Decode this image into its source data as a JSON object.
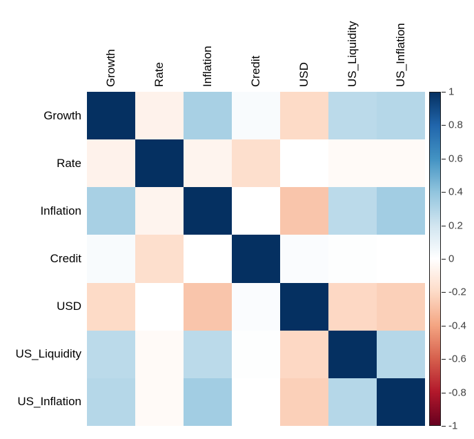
{
  "chart_data": {
    "type": "heatmap",
    "title": "",
    "xlabel": "",
    "ylabel": "",
    "rows": [
      "Growth",
      "Rate",
      "Inflation",
      "Credit",
      "USD",
      "US_Liquidity",
      "US_Inflation"
    ],
    "columns": [
      "Growth",
      "Rate",
      "Inflation",
      "Credit",
      "USD",
      "US_Liquidity",
      "US_Inflation"
    ],
    "matrix": [
      [
        1.0,
        -0.07,
        0.33,
        0.03,
        -0.2,
        0.27,
        0.29
      ],
      [
        -0.07,
        1.0,
        -0.06,
        -0.18,
        0.0,
        -0.03,
        -0.03
      ],
      [
        0.33,
        -0.06,
        1.0,
        0.0,
        -0.28,
        0.27,
        0.35
      ],
      [
        0.03,
        -0.18,
        0.0,
        1.0,
        0.02,
        0.01,
        0.0
      ],
      [
        -0.2,
        0.0,
        -0.28,
        0.02,
        1.0,
        -0.21,
        -0.24
      ],
      [
        0.27,
        -0.03,
        0.27,
        0.01,
        -0.21,
        1.0,
        0.29
      ],
      [
        0.29,
        -0.03,
        0.35,
        0.0,
        -0.24,
        0.29,
        1.0
      ]
    ],
    "grid": false,
    "legend_position": "right",
    "colorbar": {
      "range": [
        -1,
        1
      ],
      "tick_values": [
        1,
        0.8,
        0.6,
        0.4,
        0.2,
        0,
        -0.2,
        -0.4,
        -0.6,
        -0.8,
        -1
      ],
      "tick_labels": [
        "1",
        "0.8",
        "0.6",
        "0.4",
        "0.2",
        "0",
        "-0.2",
        "-0.4",
        "-0.6",
        "-0.8",
        "-1"
      ],
      "colormap_name": "RdBu (red = -1, white = 0, blue = +1)",
      "colormap_stops_low_to_high": [
        "#67001F",
        "#B2182B",
        "#D6604D",
        "#F4A582",
        "#FDDBC7",
        "#FFFFFF",
        "#D1E5F0",
        "#92C5DE",
        "#4393C3",
        "#2166AC",
        "#053061"
      ]
    },
    "colors": {
      "background": "#ffffff",
      "label_text": "#000000",
      "tick_text": "#404040",
      "colorbar_border": "#1a1a1a"
    }
  }
}
